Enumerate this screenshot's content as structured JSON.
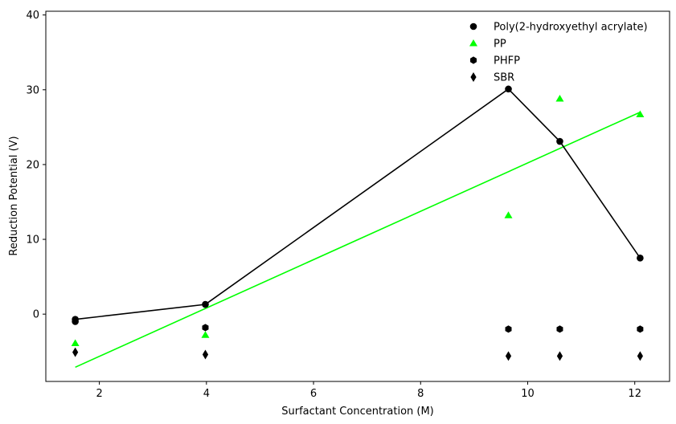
{
  "chart_data": {
    "type": "scatter",
    "xlabel": "Surfactant Concentration (M)",
    "ylabel": "Reduction Potential (V)",
    "xlim": [
      1.0,
      12.65
    ],
    "ylim": [
      -9.0,
      40.5
    ],
    "xticks": [
      2,
      4,
      6,
      8,
      10,
      12
    ],
    "yticks": [
      0,
      10,
      20,
      30,
      40
    ],
    "grid": false,
    "legend_position": "top-right",
    "series": [
      {
        "name": "Poly(2-hydroxyethyl acrylate)",
        "marker": "circle",
        "color": "#000000",
        "line": true,
        "x": [
          1.55,
          3.98,
          9.64,
          10.6,
          12.1
        ],
        "y": [
          -0.7,
          1.3,
          30.1,
          23.1,
          7.5
        ],
        "extra_points": {
          "x": [
            1.55
          ],
          "y": [
            -1.0
          ]
        }
      },
      {
        "name": "PP",
        "marker": "triangle",
        "color": "#00ff00",
        "line": false,
        "x": [
          1.55,
          3.98,
          9.64,
          10.6,
          12.1
        ],
        "y": [
          -3.9,
          -2.8,
          13.2,
          28.8,
          26.7
        ]
      },
      {
        "name": "PHFP",
        "marker": "hexagon",
        "color": "#000000",
        "line": false,
        "x": [
          3.98,
          9.64,
          10.6,
          12.1
        ],
        "y": [
          -1.8,
          -2.0,
          -2.0,
          -2.0
        ]
      },
      {
        "name": "SBR",
        "marker": "diamond",
        "color": "#000000",
        "line": false,
        "x": [
          1.55,
          3.98,
          9.64,
          10.6,
          12.1
        ],
        "y": [
          -5.1,
          -5.4,
          -5.6,
          -5.6,
          -5.6
        ]
      }
    ],
    "fit_line": {
      "color": "#00ff00",
      "x": [
        1.55,
        12.1
      ],
      "y": [
        -7.1,
        27.0
      ]
    }
  }
}
